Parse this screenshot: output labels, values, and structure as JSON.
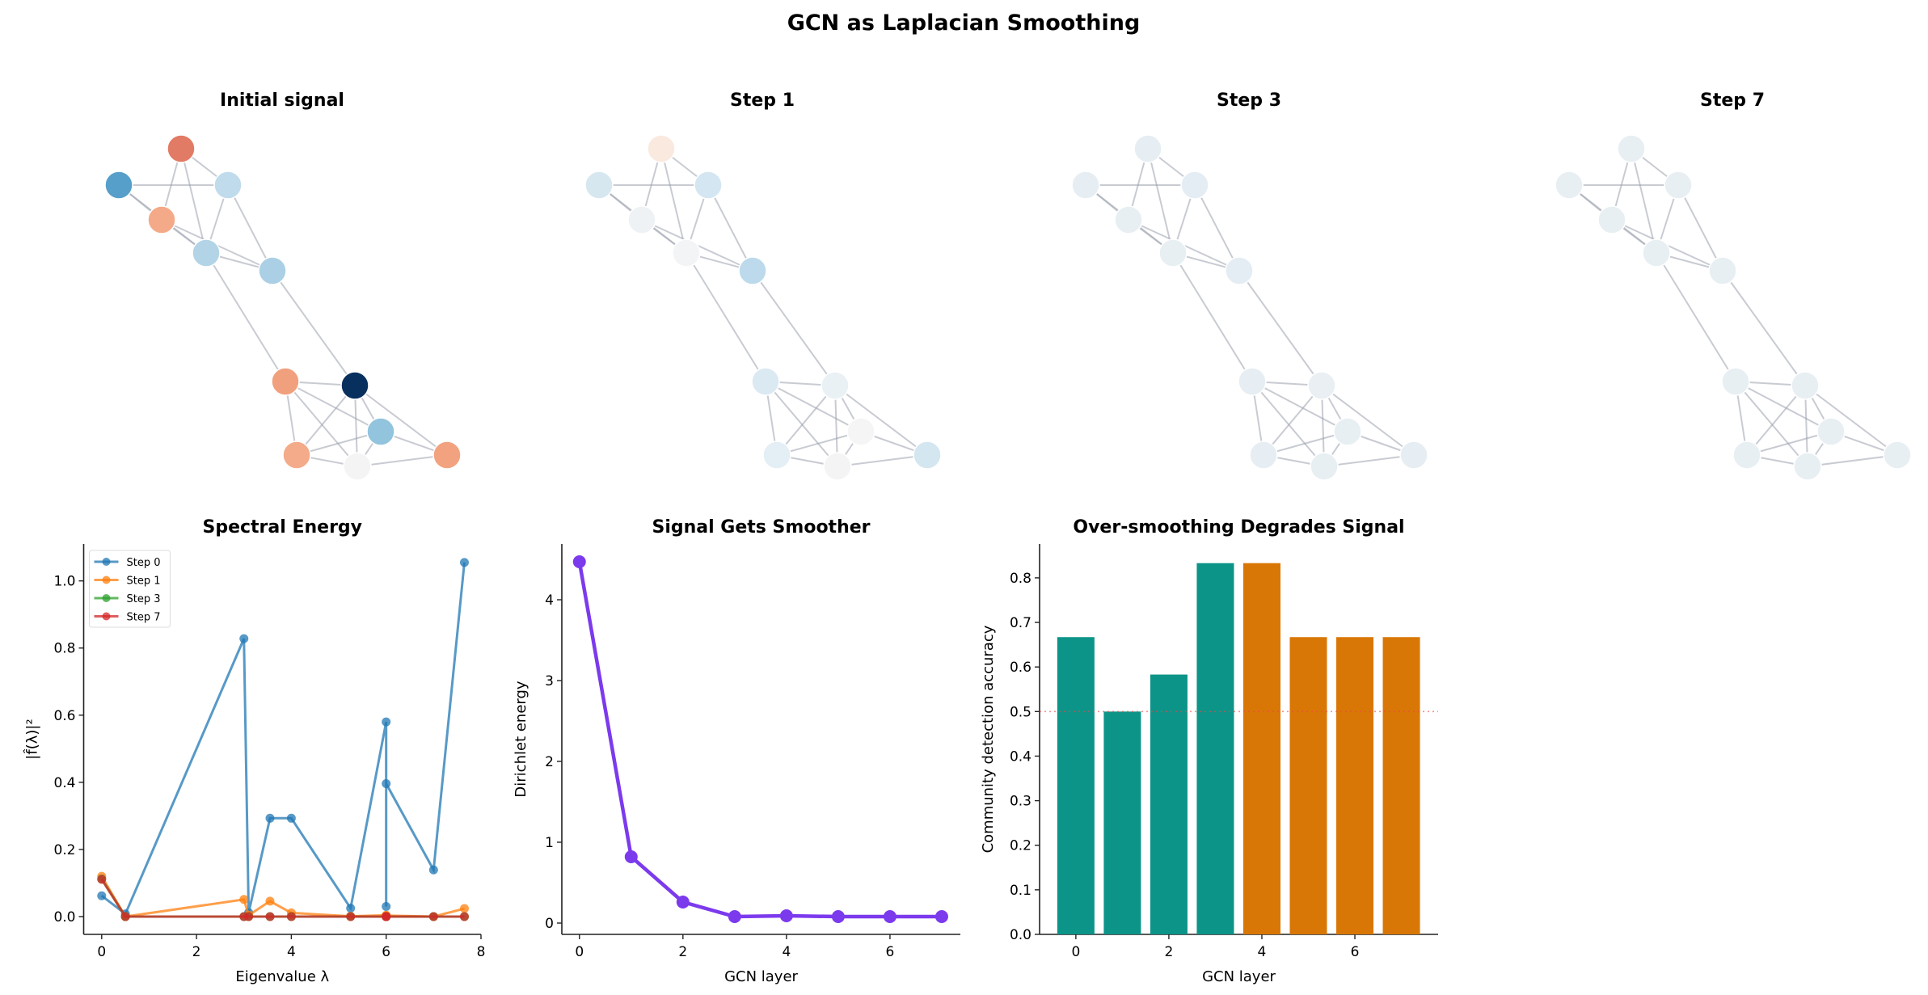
{
  "figure_title": "GCN as Laplacian Smoothing",
  "graph_panels": {
    "titles": [
      "Initial signal",
      "Step 1",
      "Step 3",
      "Step 7"
    ],
    "node_colors": [
      [
        "#e27b65",
        "#559fca",
        "#c0dbeb",
        "#f4aa88",
        "#b3d4e7",
        "#abd0e5",
        "#f1a07e",
        "#08305f",
        "#92c4de",
        "#f4ab89",
        "#f4f4f4",
        "#f2a27f"
      ],
      [
        "#fae9df",
        "#d6e7f0",
        "#d4e6f1",
        "#eef2f5",
        "#f3f4f6",
        "#bcdaeb",
        "#dbe9f2",
        "#eaf1f5",
        "#f5f5f5",
        "#e3eef5",
        "#f4f4f4",
        "#d4e6f0"
      ],
      [
        "#e6eef3",
        "#e6eef3",
        "#e4edf3",
        "#e8eff3",
        "#e8eff3",
        "#e4edf3",
        "#e6eef3",
        "#e9eff3",
        "#e8eff3",
        "#e6eef3",
        "#e8eff3",
        "#e6eef3"
      ],
      [
        "#e8eff3",
        "#e8eff3",
        "#e8eff3",
        "#e8eff3",
        "#e8eff3",
        "#e8eff3",
        "#e8eff3",
        "#e8eff3",
        "#e8eff3",
        "#e8eff3",
        "#e8eff3",
        "#e8eff3"
      ]
    ],
    "edges": [
      [
        0,
        2
      ],
      [
        0,
        3
      ],
      [
        0,
        4
      ],
      [
        1,
        2
      ],
      [
        1,
        3
      ],
      [
        1,
        4
      ],
      [
        3,
        4
      ],
      [
        3,
        5
      ],
      [
        2,
        4
      ],
      [
        2,
        5
      ],
      [
        4,
        5
      ],
      [
        4,
        6
      ],
      [
        5,
        7
      ],
      [
        6,
        7
      ],
      [
        6,
        8
      ],
      [
        6,
        9
      ],
      [
        6,
        10
      ],
      [
        7,
        9
      ],
      [
        7,
        10
      ],
      [
        7,
        8
      ],
      [
        7,
        11
      ],
      [
        8,
        9
      ],
      [
        8,
        10
      ],
      [
        8,
        11
      ],
      [
        9,
        10
      ],
      [
        10,
        11
      ]
    ],
    "edge_color": "#9aa0ad"
  },
  "chart_data": [
    {
      "type": "line",
      "title": "Spectral Energy",
      "xlabel": "Eigenvalue λ",
      "ylabel": "|f̂(λ)|²",
      "xlim": [
        -0.38,
        8.0
      ],
      "ylim": [
        -0.053,
        1.11
      ],
      "xticks": [
        "0",
        "2",
        "4",
        "6",
        "8"
      ],
      "yticks": [
        "0.0",
        "0.2",
        "0.4",
        "0.6",
        "0.8",
        "1.0"
      ],
      "legend_placement": "top-left",
      "x": [
        0,
        0.5,
        3.0,
        3.1,
        3.55,
        4.0,
        5.25,
        6.0,
        6.0,
        6.0,
        7.0,
        7.65
      ],
      "series": [
        {
          "name": "Step 0",
          "color": "#1f77b4",
          "values": [
            0.062,
            0.008,
            0.828,
            0.012,
            0.293,
            0.293,
            0.025,
            0.58,
            0.03,
            0.396,
            0.139,
            1.055
          ]
        },
        {
          "name": "Step 1",
          "color": "#ff7f0e",
          "values": [
            0.12,
            0.0,
            0.051,
            0.004,
            0.046,
            0.011,
            0.001,
            0.004,
            0.002,
            0.003,
            0.0,
            0.024
          ]
        },
        {
          "name": "Step 3",
          "color": "#2ca02c",
          "values": [
            0.112,
            0.0,
            0.0,
            0.0,
            0.0,
            0.0,
            0.0,
            0.0,
            0.0,
            0.0,
            0.0,
            0.0
          ]
        },
        {
          "name": "Step 7",
          "color": "#d62728",
          "values": [
            0.111,
            0.0,
            0.0,
            0.0,
            0.0,
            0.0,
            0.0,
            0.0,
            0.0,
            0.0,
            0.0,
            0.0
          ]
        }
      ]
    },
    {
      "type": "line",
      "title": "Signal Gets Smoother",
      "xlabel": "GCN layer",
      "ylabel": "Dirichlet energy",
      "xlim": [
        -0.34,
        7.36
      ],
      "ylim": [
        -0.14,
        4.69
      ],
      "xticks": [
        "0",
        "2",
        "4",
        "6"
      ],
      "yticks": [
        "0",
        "1",
        "2",
        "3",
        "4"
      ],
      "x": [
        0,
        1,
        2,
        3,
        4,
        5,
        6,
        7
      ],
      "series": [
        {
          "color": "#7c3aed",
          "values": [
            4.47,
            0.82,
            0.26,
            0.08,
            0.09,
            0.08,
            0.08,
            0.08
          ]
        }
      ]
    },
    {
      "type": "bar",
      "title": "Over-smoothing Degrades Signal",
      "xlabel": "GCN layer",
      "ylabel": "Community detection accuracy",
      "xlim": [
        -0.78,
        7.79
      ],
      "ylim": [
        0,
        0.876
      ],
      "xticks": [
        "0",
        "2",
        "4",
        "6"
      ],
      "yticks": [
        "0.0",
        "0.1",
        "0.2",
        "0.3",
        "0.4",
        "0.5",
        "0.6",
        "0.7",
        "0.8"
      ],
      "categories": [
        0,
        1,
        2,
        3,
        4,
        5,
        6,
        7
      ],
      "values": [
        0.667,
        0.5,
        0.583,
        0.833,
        0.833,
        0.667,
        0.667,
        0.667
      ],
      "bar_colors": [
        "#0d9488",
        "#0d9488",
        "#0d9488",
        "#0d9488",
        "#d97706",
        "#d97706",
        "#d97706",
        "#d97706"
      ],
      "reference_line": {
        "y": 0.5,
        "color": "#ef4444",
        "style": "dotted"
      }
    }
  ]
}
